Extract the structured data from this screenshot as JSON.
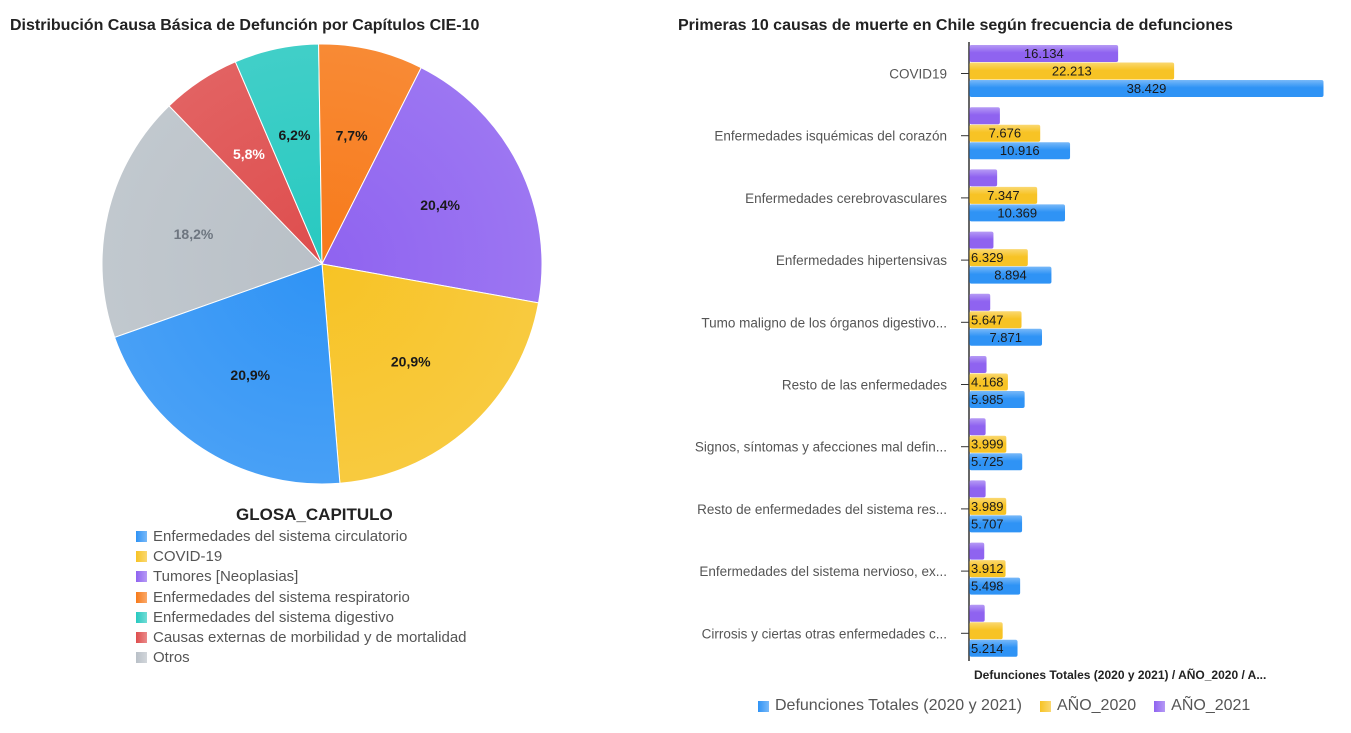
{
  "pie_panel": {
    "title": "Distribución Causa Básica de Defunción por Capítulos CIE-10",
    "legend_title": "GLOSA_CAPITULO"
  },
  "bar_panel": {
    "title": "Primeras 10 causas de muerte en Chile según frecuencia de defunciones",
    "axis_caption": "Defunciones Totales (2020 y 2021) / AÑO_2020 / A..."
  },
  "chart_data": [
    {
      "type": "pie",
      "title": "Distribución Causa Básica de Defunción por Capítulos CIE-10",
      "legend_title": "GLOSA_CAPITULO",
      "legend_placement": "bottom",
      "slices": [
        {
          "label": "Enfermedades del sistema circulatorio",
          "value": 20.9,
          "value_label": "20,9%",
          "color": "#2f93f5"
        },
        {
          "label": "COVID-19",
          "value": 20.9,
          "value_label": "20,9%",
          "color": "#f7c325"
        },
        {
          "label": "Tumores [Neoplasias]",
          "value": 20.4,
          "value_label": "20,4%",
          "color": "#8f63f0"
        },
        {
          "label": "Enfermedades del sistema respiratorio",
          "value": 7.7,
          "value_label": "7,7%",
          "color": "#f77a1a"
        },
        {
          "label": "Enfermedades del sistema digestivo",
          "value": 6.2,
          "value_label": "6,2%",
          "color": "#27c9c0"
        },
        {
          "label": "Causas externas de morbilidad y de mortalidad",
          "value": 5.8,
          "value_label": "5,8%",
          "color": "#de4d4d"
        },
        {
          "label": "Otros",
          "value": 18.2,
          "value_label": "18,2%",
          "color": "#b9c0c7"
        }
      ]
    },
    {
      "type": "bar",
      "orientation": "horizontal",
      "title": "Primeras 10 causas de muerte en Chile según frecuencia de defunciones",
      "xlabel": "Defunciones Totales (2020 y 2021) / AÑO_2020 / A...",
      "xlim": [
        0,
        38429
      ],
      "grid": false,
      "legend_placement": "bottom",
      "categories": [
        "COVID19",
        "Enfermedades isquémicas del corazón",
        "Enfermedades cerebrovasculares",
        "Enfermedades hipertensivas",
        "Tumo maligno de los órganos digestivo...",
        "Resto de las enfermedades",
        "Signos, síntomas y afecciones mal defin...",
        "Resto de enfermedades del sistema res...",
        "Enfermedades del sistema nervioso, ex...",
        "Cirrosis y ciertas otras enfermedades c..."
      ],
      "series": [
        {
          "name": "Defunciones Totales (2020 y 2021)",
          "color": "#2f93f5",
          "values": [
            38429,
            10916,
            10369,
            8894,
            7871,
            5985,
            5725,
            5707,
            5498,
            5214
          ],
          "labels": [
            "38.429",
            "10.916",
            "10.369",
            "8.894",
            "7.871",
            "5.985",
            "5.725",
            "5.707",
            "5.498",
            "5.214"
          ]
        },
        {
          "name": "AÑO_2020",
          "color": "#f7c325",
          "values": [
            22213,
            7676,
            7347,
            6329,
            5647,
            4168,
            3999,
            3989,
            3912,
            3600
          ],
          "labels": [
            "22.213",
            "7.676",
            "7.347",
            "6.329",
            "5.647",
            "4.168",
            "3.999",
            "3.989",
            "3.912",
            ""
          ]
        },
        {
          "name": "AÑO_2021",
          "color": "#8f63f0",
          "values": [
            16134,
            3300,
            3000,
            2600,
            2250,
            1850,
            1750,
            1750,
            1600,
            1650
          ],
          "labels": [
            "16.134",
            "",
            "",
            "",
            "",
            "",
            "",
            "",
            "",
            ""
          ]
        }
      ]
    }
  ]
}
